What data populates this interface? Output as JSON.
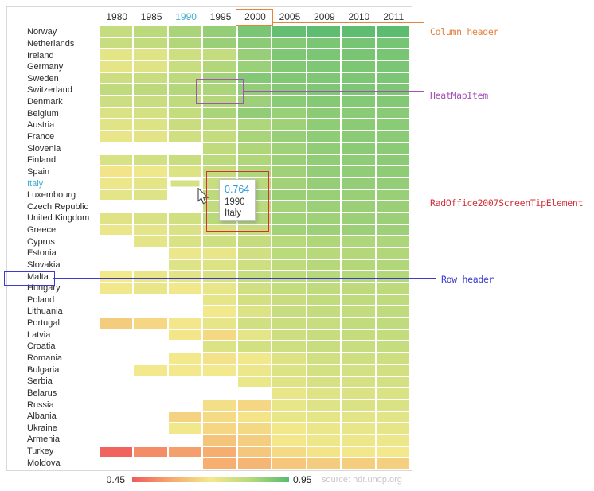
{
  "annotations": {
    "column_header": {
      "label": "Column header",
      "color": "#e0823f"
    },
    "heat_map_item": {
      "label": "HeatMapItem",
      "color": "#a352b5"
    },
    "screen_tip": {
      "label": "RadOffice2007ScreenTipElement",
      "color": "#d3303a"
    },
    "row_header": {
      "label": "Row header",
      "color": "#3c3ccb"
    }
  },
  "tooltip": {
    "value": "0.764",
    "year": "1990",
    "country": "Italy"
  },
  "legend": {
    "min": "0.45",
    "max": "0.95",
    "source": "source: hdr.undp.org"
  },
  "chart_data": {
    "type": "heatmap",
    "columns": [
      "1980",
      "1985",
      "1990",
      "1995",
      "2000",
      "2005",
      "2009",
      "2010",
      "2011"
    ],
    "highlighted_column": "1990",
    "boxed_column": "2000",
    "highlighted_row": "Italy",
    "boxed_row": "Malta",
    "selected_cell": {
      "row": "Italy",
      "column": "1990",
      "value": 0.764
    },
    "color_scale": {
      "min": 0.45,
      "max": 0.95,
      "stop_values": [
        0.45,
        0.575,
        0.7,
        0.825,
        0.95
      ],
      "stop_colors": [
        "#ee5c5c",
        "#f6a96e",
        "#f3e98c",
        "#b9d97b",
        "#57bb70"
      ]
    },
    "rows": [
      {
        "name": "Norway",
        "values": [
          0.796,
          0.82,
          0.844,
          0.87,
          0.906,
          0.932,
          0.941,
          0.941,
          0.943
        ]
      },
      {
        "name": "Netherlands",
        "values": [
          0.792,
          0.806,
          0.835,
          0.866,
          0.882,
          0.89,
          0.905,
          0.909,
          0.91
        ]
      },
      {
        "name": "Ireland",
        "values": [
          0.735,
          0.745,
          0.782,
          0.805,
          0.869,
          0.898,
          0.905,
          0.907,
          0.908
        ]
      },
      {
        "name": "Germany",
        "values": [
          0.73,
          0.744,
          0.795,
          0.835,
          0.864,
          0.895,
          0.9,
          0.903,
          0.905
        ]
      },
      {
        "name": "Sweden",
        "values": [
          0.785,
          0.792,
          0.816,
          0.855,
          0.894,
          0.896,
          0.898,
          0.901,
          0.904
        ]
      },
      {
        "name": "Switzerland",
        "values": [
          0.81,
          0.819,
          0.833,
          0.841,
          0.873,
          0.89,
          0.899,
          0.901,
          0.903
        ]
      },
      {
        "name": "Denmark",
        "values": [
          0.783,
          0.79,
          0.809,
          0.833,
          0.861,
          0.885,
          0.891,
          0.893,
          0.895
        ]
      },
      {
        "name": "Belgium",
        "values": [
          0.757,
          0.769,
          0.805,
          0.845,
          0.876,
          0.867,
          0.883,
          0.885,
          0.886
        ]
      },
      {
        "name": "Austria",
        "values": [
          0.74,
          0.75,
          0.79,
          0.815,
          0.839,
          0.86,
          0.879,
          0.883,
          0.885
        ]
      },
      {
        "name": "France",
        "values": [
          0.722,
          0.737,
          0.777,
          0.802,
          0.846,
          0.869,
          0.88,
          0.883,
          0.884
        ]
      },
      {
        "name": "Slovenia",
        "values": [
          null,
          null,
          null,
          0.813,
          0.837,
          0.86,
          0.876,
          0.882,
          0.884
        ]
      },
      {
        "name": "Finland",
        "values": [
          0.759,
          0.774,
          0.794,
          0.821,
          0.837,
          0.863,
          0.877,
          0.88,
          0.882
        ]
      },
      {
        "name": "Spain",
        "values": [
          0.691,
          0.708,
          0.749,
          0.801,
          0.839,
          0.857,
          0.874,
          0.876,
          0.878
        ]
      },
      {
        "name": "Italy",
        "values": [
          0.717,
          0.735,
          0.764,
          0.795,
          0.825,
          0.856,
          0.87,
          0.873,
          0.874
        ]
      },
      {
        "name": "Luxembourg",
        "values": [
          0.732,
          0.747,
          null,
          0.818,
          0.852,
          0.865,
          0.866,
          0.867,
          0.867
        ]
      },
      {
        "name": "Czech Republic",
        "values": [
          null,
          null,
          null,
          0.806,
          0.821,
          0.851,
          0.863,
          0.865,
          0.865
        ]
      },
      {
        "name": "United Kingdom",
        "values": [
          0.744,
          0.759,
          0.778,
          0.823,
          0.833,
          0.855,
          0.86,
          0.862,
          0.863
        ]
      },
      {
        "name": "Greece",
        "values": [
          0.72,
          0.733,
          0.753,
          0.763,
          0.796,
          0.856,
          0.861,
          0.862,
          0.861
        ]
      },
      {
        "name": "Cyprus",
        "values": [
          null,
          0.733,
          0.755,
          0.779,
          0.8,
          0.827,
          0.837,
          0.839,
          0.84
        ]
      },
      {
        "name": "Estonia",
        "values": [
          null,
          null,
          0.717,
          0.722,
          0.776,
          0.821,
          0.828,
          0.832,
          0.835
        ]
      },
      {
        "name": "Slovakia",
        "values": [
          null,
          null,
          0.747,
          0.75,
          0.779,
          0.81,
          0.829,
          0.832,
          0.834
        ]
      },
      {
        "name": "Malta",
        "values": [
          0.703,
          0.722,
          0.737,
          0.761,
          0.797,
          0.815,
          0.827,
          0.83,
          0.832
        ]
      },
      {
        "name": "Hungary",
        "values": [
          0.706,
          0.721,
          0.706,
          0.726,
          0.775,
          0.805,
          0.811,
          0.814,
          0.816
        ]
      },
      {
        "name": "Poland",
        "values": [
          null,
          null,
          null,
          0.727,
          0.77,
          0.791,
          0.807,
          0.811,
          0.813
        ]
      },
      {
        "name": "Lithuania",
        "values": [
          null,
          null,
          null,
          0.702,
          0.749,
          0.793,
          0.802,
          0.805,
          0.81
        ]
      },
      {
        "name": "Portugal",
        "values": [
          0.643,
          0.662,
          0.694,
          0.729,
          0.778,
          0.789,
          0.795,
          0.808,
          0.809
        ]
      },
      {
        "name": "Latvia",
        "values": [
          null,
          null,
          0.693,
          0.667,
          0.732,
          0.784,
          0.798,
          0.802,
          0.805
        ]
      },
      {
        "name": "Croatia",
        "values": [
          null,
          null,
          null,
          0.749,
          0.77,
          0.78,
          0.793,
          0.795,
          0.796
        ]
      },
      {
        "name": "Romania",
        "values": [
          null,
          null,
          0.7,
          0.687,
          0.704,
          0.748,
          0.778,
          0.779,
          0.781
        ]
      },
      {
        "name": "Bulgaria",
        "values": [
          null,
          0.698,
          0.698,
          0.702,
          0.715,
          0.749,
          0.766,
          0.768,
          0.771
        ]
      },
      {
        "name": "Serbia",
        "values": [
          null,
          null,
          null,
          null,
          0.719,
          0.744,
          0.761,
          0.764,
          0.766
        ]
      },
      {
        "name": "Belarus",
        "values": [
          null,
          null,
          null,
          null,
          null,
          0.723,
          0.746,
          0.751,
          0.756
        ]
      },
      {
        "name": "Russia",
        "values": [
          null,
          null,
          null,
          0.68,
          0.662,
          0.725,
          0.747,
          0.751,
          0.755
        ]
      },
      {
        "name": "Albania",
        "values": [
          null,
          null,
          0.656,
          0.67,
          0.691,
          0.721,
          0.734,
          0.737,
          0.739
        ]
      },
      {
        "name": "Ukraine",
        "values": [
          null,
          null,
          0.707,
          0.662,
          0.669,
          0.696,
          0.72,
          0.725,
          0.729
        ]
      },
      {
        "name": "Armenia",
        "values": [
          null,
          null,
          null,
          0.628,
          0.648,
          0.695,
          0.712,
          0.714,
          0.716
        ]
      },
      {
        "name": "Turkey",
        "values": [
          0.463,
          0.528,
          0.558,
          0.583,
          0.634,
          0.671,
          0.69,
          0.696,
          0.699
        ]
      },
      {
        "name": "Moldova",
        "values": [
          null,
          null,
          null,
          0.586,
          0.598,
          0.631,
          0.644,
          0.646,
          0.649
        ]
      }
    ]
  }
}
